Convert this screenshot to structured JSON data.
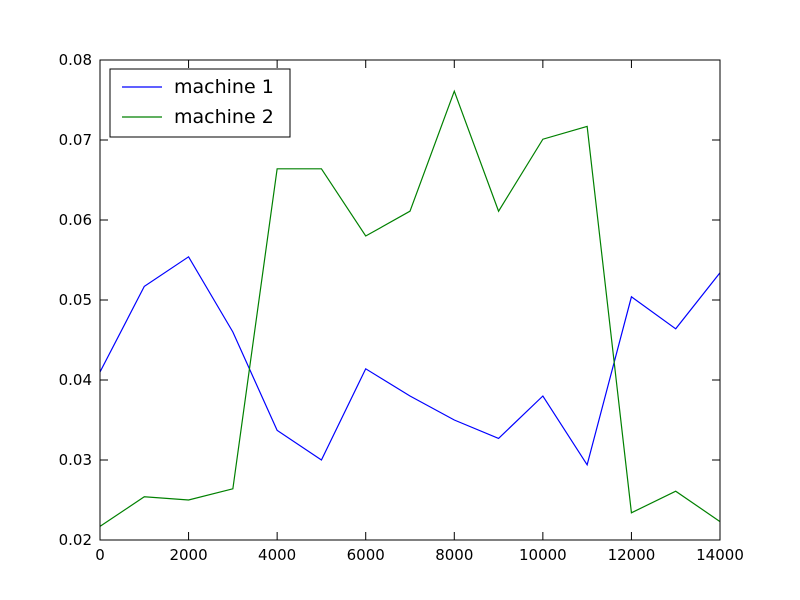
{
  "chart_data": {
    "type": "line",
    "title": "",
    "xlabel": "",
    "ylabel": "",
    "xlim": [
      0,
      14000
    ],
    "ylim": [
      0.02,
      0.08
    ],
    "x_ticks": [
      0,
      2000,
      4000,
      6000,
      8000,
      10000,
      12000,
      14000
    ],
    "x_tick_labels": [
      "0",
      "2000",
      "4000",
      "6000",
      "8000",
      "10000",
      "12000",
      "14000"
    ],
    "y_ticks": [
      0.02,
      0.03,
      0.04,
      0.05,
      0.06,
      0.07,
      0.08
    ],
    "y_tick_labels": [
      "0.02",
      "0.03",
      "0.04",
      "0.05",
      "0.06",
      "0.07",
      "0.08"
    ],
    "grid": false,
    "legend_position": "top-left",
    "x": [
      0,
      1000,
      2000,
      3000,
      4000,
      5000,
      6000,
      7000,
      8000,
      9000,
      10000,
      11000,
      12000,
      13000,
      14000
    ],
    "series": [
      {
        "name": "machine 1",
        "color": "#0000ff",
        "values": [
          0.041,
          0.0517,
          0.0554,
          0.046,
          0.0337,
          0.03,
          0.0414,
          0.038,
          0.035,
          0.0327,
          0.038,
          0.0294,
          0.0504,
          0.0464,
          0.0534
        ]
      },
      {
        "name": "machine 2",
        "color": "#008000",
        "values": [
          0.0217,
          0.0254,
          0.025,
          0.0264,
          0.0664,
          0.0664,
          0.058,
          0.0611,
          0.0761,
          0.0611,
          0.0701,
          0.0717,
          0.0234,
          0.0261,
          0.0223
        ]
      }
    ]
  }
}
